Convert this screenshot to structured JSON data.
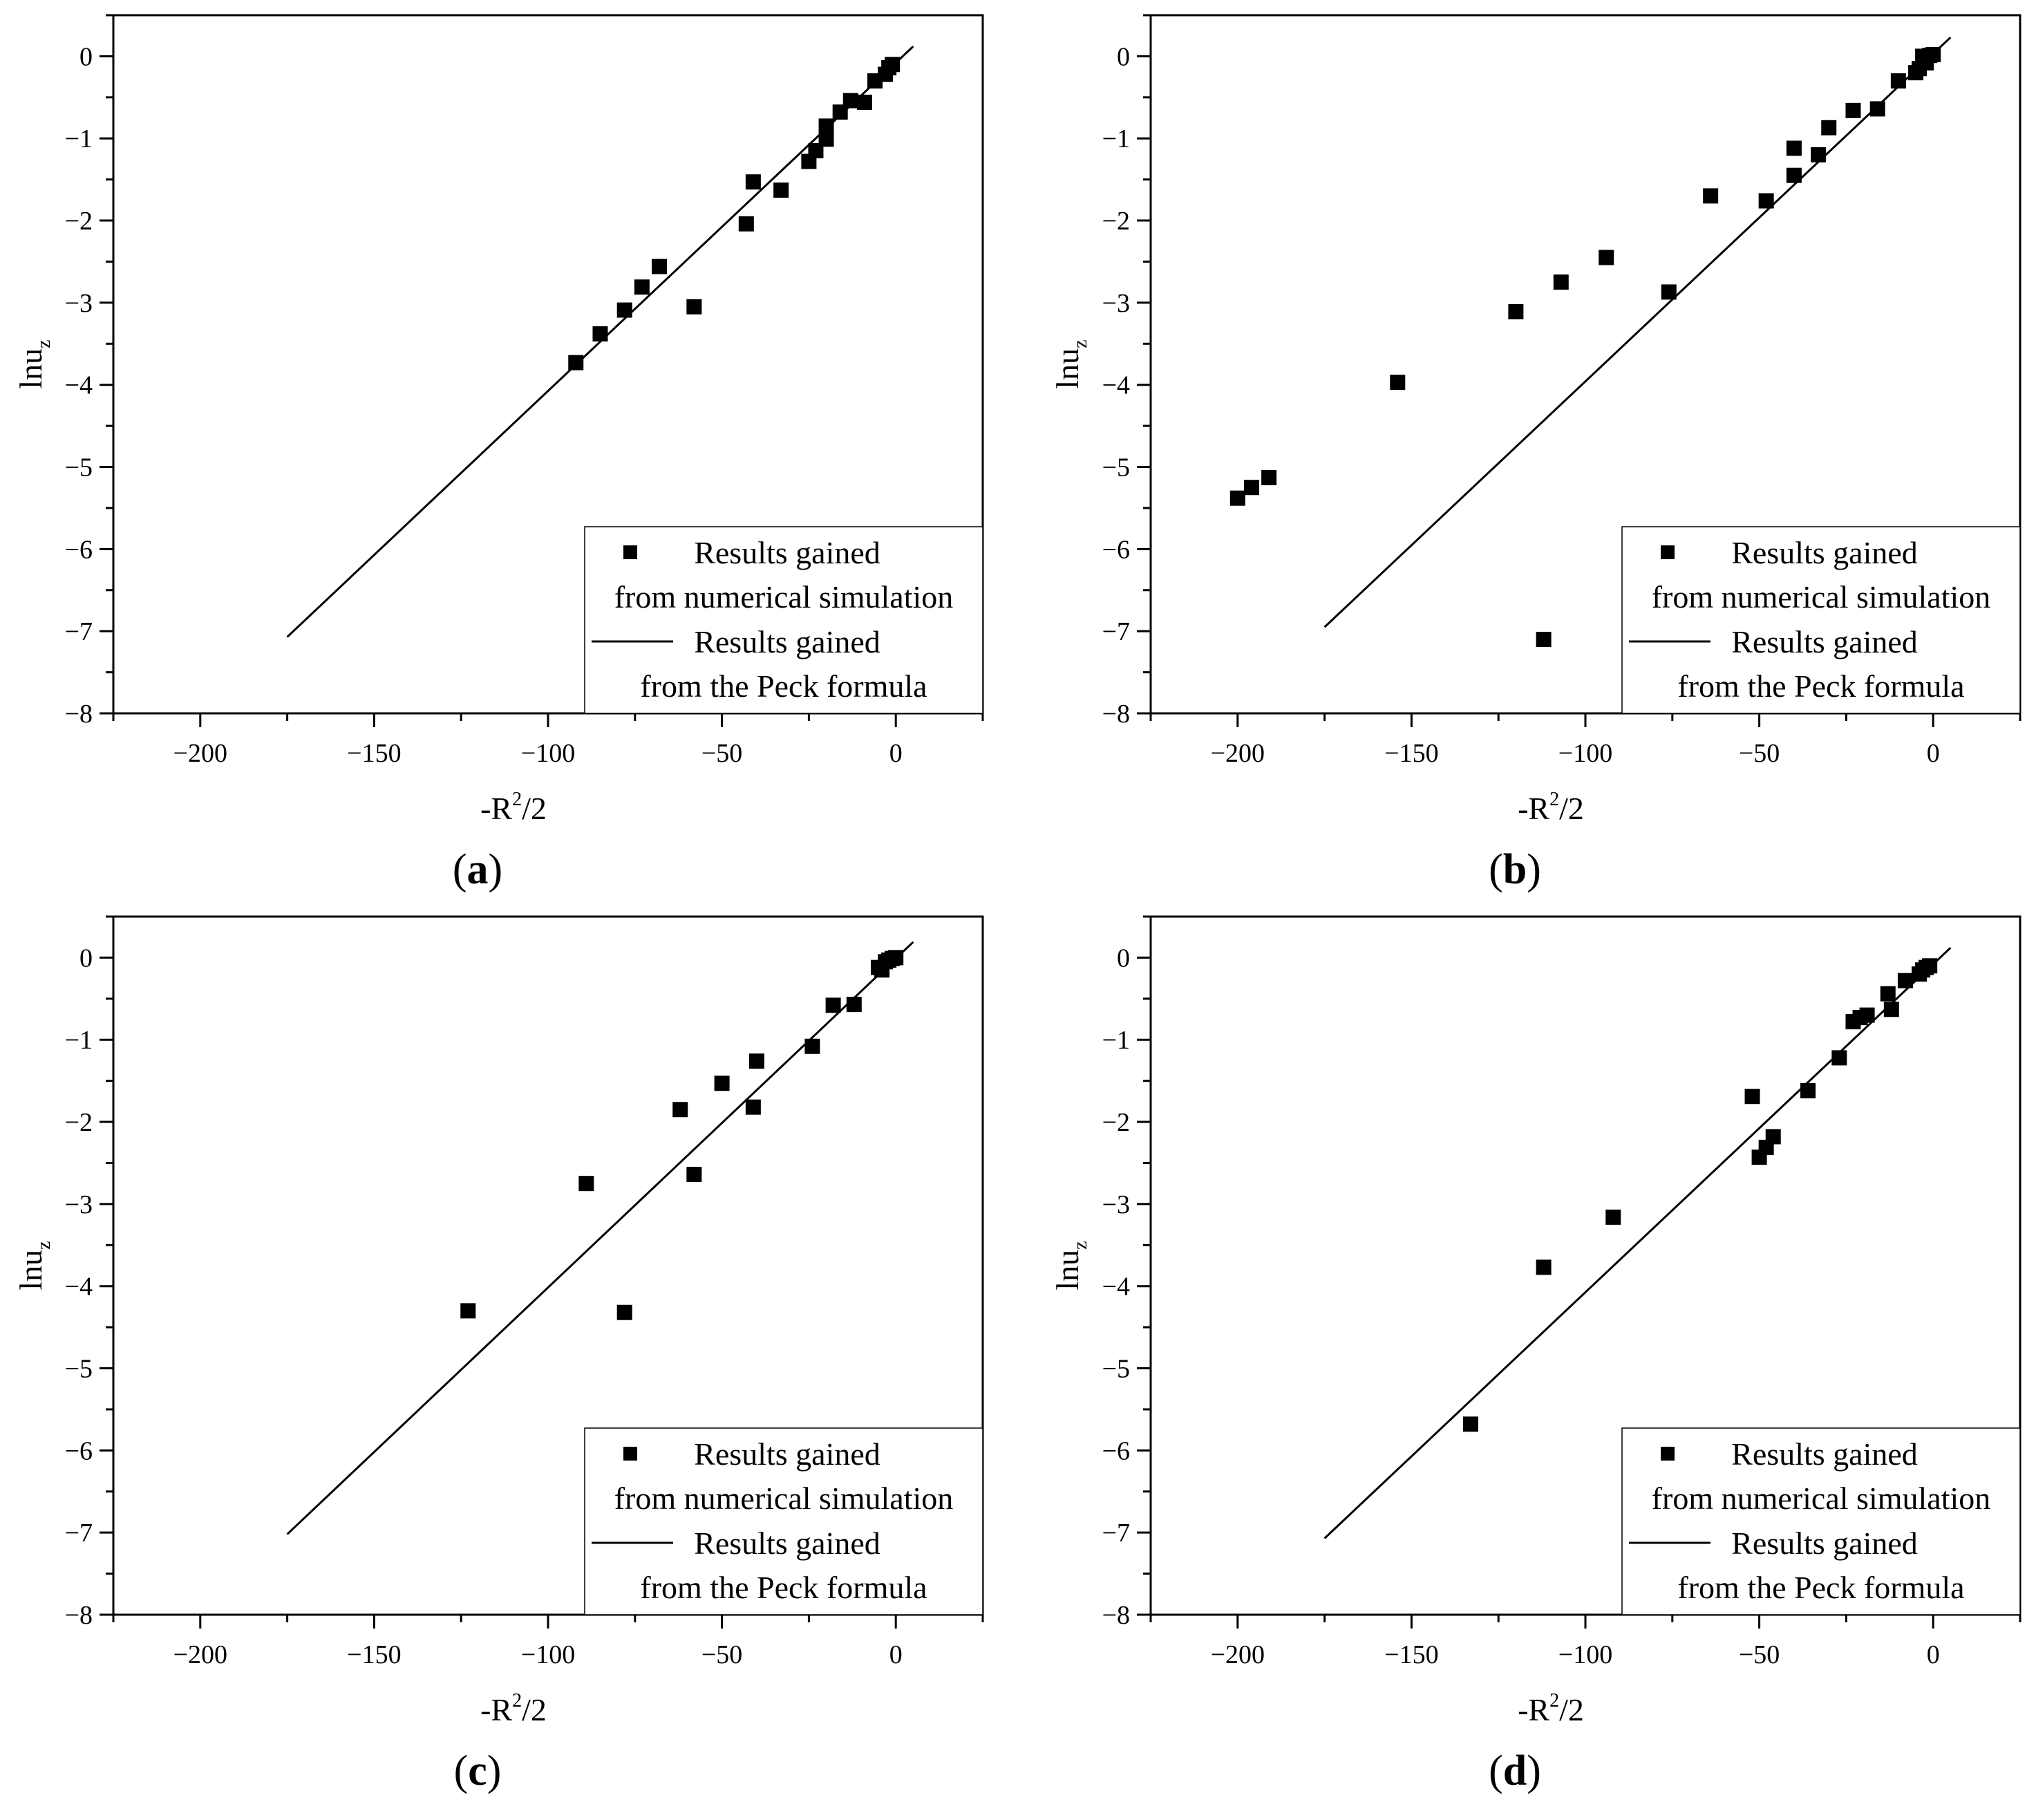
{
  "figure": {
    "panels": [
      {
        "id": "a",
        "panel_label": "(a)",
        "legend": {
          "scatter_line1": "Results gained",
          "scatter_line2": "from numerical simulation",
          "line_line1": "Results gained",
          "line_line2": "from the Peck formula"
        }
      },
      {
        "id": "b",
        "panel_label": "(b)",
        "legend": {
          "scatter_line1": "Results gained",
          "scatter_line2": "from numerical simulation",
          "line_line1": "Results gained",
          "line_line2": "from the Peck formula"
        }
      },
      {
        "id": "c",
        "panel_label": "(c)",
        "legend": {
          "scatter_line1": "Results gained",
          "scatter_line2": "from numerical simulation",
          "line_line1": "Results gained",
          "line_line2": "from the Peck formula"
        }
      },
      {
        "id": "d",
        "panel_label": "(d)",
        "legend": {
          "scatter_line1": "Results gained",
          "scatter_line2": "from numerical simulation",
          "line_line1": "Results gained",
          "line_line2": "from the Peck formula"
        }
      }
    ]
  },
  "chart_data": [
    {
      "type": "scatter",
      "panel": "(a)",
      "xlabel": "-R²/2",
      "ylabel": "lnu_z",
      "xlim": [
        -225,
        25
      ],
      "ylim": [
        -8,
        0.5
      ],
      "xticks": [
        -200,
        -150,
        -100,
        -50,
        0
      ],
      "yticks": [
        0,
        -1,
        -2,
        -3,
        -4,
        -5,
        -6,
        -7,
        -8
      ],
      "legend_position": "bottom-right",
      "series": [
        {
          "name": "Results gained from numerical simulation",
          "kind": "scatter",
          "points": [
            [
              -92,
              -3.73
            ],
            [
              -85,
              -3.38
            ],
            [
              -78,
              -3.09
            ],
            [
              -73,
              -2.81
            ],
            [
              -68,
              -2.56
            ],
            [
              -58,
              -3.05
            ],
            [
              -43,
              -2.04
            ],
            [
              -41,
              -1.53
            ],
            [
              -33,
              -1.63
            ],
            [
              -25,
              -1.28
            ],
            [
              -23,
              -1.15
            ],
            [
              -20,
              -1.01
            ],
            [
              -20,
              -0.85
            ],
            [
              -16,
              -0.68
            ],
            [
              -13,
              -0.54
            ],
            [
              -9,
              -0.56
            ],
            [
              -6,
              -0.3
            ],
            [
              -3,
              -0.22
            ],
            [
              -2,
              -0.14
            ],
            [
              -1,
              -0.1
            ]
          ]
        },
        {
          "name": "Results gained from the Peck formula",
          "kind": "line",
          "points": [
            [
              -175,
              -7.07
            ],
            [
              5,
              0.12
            ]
          ]
        }
      ]
    },
    {
      "type": "scatter",
      "panel": "(b)",
      "xlabel": "-R²/2",
      "ylabel": "lnu_z",
      "xlim": [
        -225,
        25
      ],
      "ylim": [
        -8,
        0.5
      ],
      "xticks": [
        -200,
        -150,
        -100,
        -50,
        0
      ],
      "yticks": [
        0,
        -1,
        -2,
        -3,
        -4,
        -5,
        -6,
        -7,
        -8
      ],
      "legend_position": "bottom-right",
      "series": [
        {
          "name": "Results gained from numerical simulation",
          "kind": "scatter",
          "points": [
            [
              -200,
              -5.38
            ],
            [
              -196,
              -5.25
            ],
            [
              -191,
              -5.13
            ],
            [
              -154,
              -3.97
            ],
            [
              -120,
              -3.11
            ],
            [
              -112,
              -7.1
            ],
            [
              -107,
              -2.75
            ],
            [
              -94,
              -2.45
            ],
            [
              -76,
              -2.87
            ],
            [
              -64,
              -1.7
            ],
            [
              -48,
              -1.76
            ],
            [
              -40,
              -1.12
            ],
            [
              -40,
              -1.45
            ],
            [
              -33,
              -1.2
            ],
            [
              -30,
              -0.87
            ],
            [
              -23,
              -0.66
            ],
            [
              -16,
              -0.64
            ],
            [
              -10,
              -0.3
            ],
            [
              -5,
              -0.2
            ],
            [
              -4,
              -0.15
            ],
            [
              -3,
              0.0
            ],
            [
              -2,
              -0.08
            ],
            [
              -1,
              0.01
            ],
            [
              0,
              0.02
            ]
          ]
        },
        {
          "name": "Results gained from the Peck formula",
          "kind": "line",
          "points": [
            [
              -175,
              -6.95
            ],
            [
              5,
              0.23
            ]
          ]
        }
      ]
    },
    {
      "type": "scatter",
      "panel": "(c)",
      "xlabel": "-R²/2",
      "ylabel": "lnu_z",
      "xlim": [
        -225,
        25
      ],
      "ylim": [
        -8,
        0.5
      ],
      "xticks": [
        -200,
        -150,
        -100,
        -50,
        0
      ],
      "yticks": [
        0,
        -1,
        -2,
        -3,
        -4,
        -5,
        -6,
        -7,
        -8
      ],
      "legend_position": "bottom-right",
      "series": [
        {
          "name": "Results gained from numerical simulation",
          "kind": "scatter",
          "points": [
            [
              -123,
              -4.3
            ],
            [
              -89,
              -2.75
            ],
            [
              -78,
              -4.32
            ],
            [
              -62,
              -1.85
            ],
            [
              -58,
              -2.64
            ],
            [
              -50,
              -1.53
            ],
            [
              -41,
              -1.82
            ],
            [
              -40,
              -1.26
            ],
            [
              -24,
              -1.08
            ],
            [
              -18,
              -0.58
            ],
            [
              -12,
              -0.57
            ],
            [
              -5,
              -0.12
            ],
            [
              -4,
              -0.15
            ],
            [
              -3,
              -0.05
            ],
            [
              -2,
              -0.03
            ],
            [
              -1,
              -0.01
            ],
            [
              0,
              0.0
            ]
          ]
        },
        {
          "name": "Results gained from the Peck formula",
          "kind": "line",
          "points": [
            [
              -175,
              -7.02
            ],
            [
              5,
              0.19
            ]
          ]
        }
      ]
    },
    {
      "type": "scatter",
      "panel": "(d)",
      "xlabel": "-R²/2",
      "ylabel": "lnu_z",
      "xlim": [
        -225,
        25
      ],
      "ylim": [
        -8,
        0.5
      ],
      "xticks": [
        -200,
        -150,
        -100,
        -50,
        0
      ],
      "yticks": [
        0,
        -1,
        -2,
        -3,
        -4,
        -5,
        -6,
        -7,
        -8
      ],
      "legend_position": "bottom-right",
      "series": [
        {
          "name": "Results gained from numerical simulation",
          "kind": "scatter",
          "points": [
            [
              -133,
              -5.68
            ],
            [
              -112,
              -3.77
            ],
            [
              -92,
              -3.16
            ],
            [
              -52,
              -1.69
            ],
            [
              -50,
              -2.43
            ],
            [
              -48,
              -2.31
            ],
            [
              -46,
              -2.18
            ],
            [
              -36,
              -1.62
            ],
            [
              -27,
              -1.22
            ],
            [
              -23,
              -0.78
            ],
            [
              -21,
              -0.73
            ],
            [
              -19,
              -0.7
            ],
            [
              -13,
              -0.44
            ],
            [
              -12,
              -0.63
            ],
            [
              -8,
              -0.28
            ],
            [
              -4,
              -0.2
            ],
            [
              -3,
              -0.15
            ],
            [
              -2,
              -0.12
            ],
            [
              -1,
              -0.1
            ]
          ]
        },
        {
          "name": "Results gained from the Peck formula",
          "kind": "line",
          "points": [
            [
              -175,
              -7.07
            ],
            [
              5,
              0.12
            ]
          ]
        }
      ]
    }
  ]
}
